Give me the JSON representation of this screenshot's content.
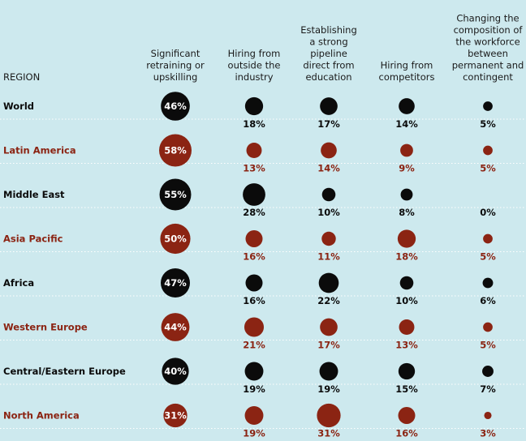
{
  "colors": {
    "background": "#cde9ee",
    "dark": "#0b0b0b",
    "accent": "#8b2413",
    "divider": "#ffffff"
  },
  "chart_data": {
    "type": "bubble-table",
    "row_header": "REGION",
    "columns": [
      {
        "key": "retraining",
        "lines": [
          "Significant",
          "retraining or",
          "upskilling"
        ]
      },
      {
        "key": "outside",
        "lines": [
          "Hiring from",
          "outside the",
          "industry"
        ]
      },
      {
        "key": "pipeline",
        "lines": [
          "Establishing",
          "a strong",
          "pipeline",
          "direct from",
          "education"
        ]
      },
      {
        "key": "competitors",
        "lines": [
          "Hiring from",
          "competitors"
        ]
      },
      {
        "key": "composition",
        "lines": [
          "Changing the",
          "composition of",
          "the workforce",
          "between",
          "permanent and",
          "contingent"
        ]
      }
    ],
    "rows": [
      {
        "region": "World",
        "highlight": false,
        "values": [
          46,
          18,
          17,
          14,
          5
        ]
      },
      {
        "region": "Latin America",
        "highlight": true,
        "values": [
          58,
          13,
          14,
          9,
          5
        ]
      },
      {
        "region": "Middle East",
        "highlight": false,
        "values": [
          55,
          28,
          10,
          8,
          0
        ]
      },
      {
        "region": "Asia Pacific",
        "highlight": true,
        "values": [
          50,
          16,
          11,
          18,
          5
        ]
      },
      {
        "region": "Africa",
        "highlight": false,
        "values": [
          47,
          16,
          22,
          10,
          6
        ]
      },
      {
        "region": "Western Europe",
        "highlight": true,
        "values": [
          44,
          21,
          17,
          13,
          5
        ]
      },
      {
        "region": "Central/Eastern Europe",
        "highlight": false,
        "values": [
          40,
          19,
          19,
          15,
          7
        ]
      },
      {
        "region": "North America",
        "highlight": true,
        "values": [
          31,
          19,
          31,
          16,
          3
        ]
      }
    ],
    "value_suffix": "%"
  }
}
